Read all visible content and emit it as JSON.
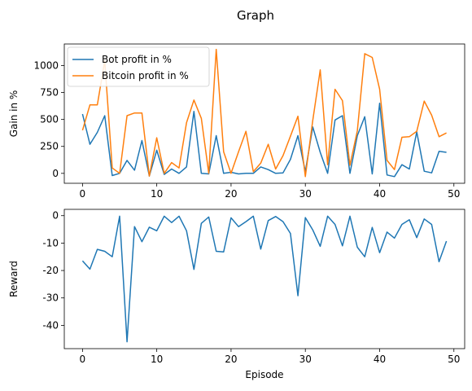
{
  "figure": {
    "title": "Graph"
  },
  "colors": {
    "blue": "#1f77b4",
    "orange": "#ff7f0e"
  },
  "chart_data": [
    {
      "type": "line",
      "ylabel": "Gain in %",
      "xlabel": "",
      "xlim": [
        -2.45,
        51.45
      ],
      "ylim": [
        -92,
        1200
      ],
      "xticks": [
        0,
        10,
        20,
        30,
        40,
        50
      ],
      "yticks": [
        0,
        250,
        500,
        750,
        1000
      ],
      "legend": "upper-left",
      "x": [
        0,
        1,
        2,
        3,
        4,
        5,
        6,
        7,
        8,
        9,
        10,
        11,
        12,
        13,
        14,
        15,
        16,
        17,
        18,
        19,
        20,
        21,
        22,
        23,
        24,
        25,
        26,
        27,
        28,
        29,
        30,
        31,
        32,
        33,
        34,
        35,
        36,
        37,
        38,
        39,
        40,
        41,
        42,
        43,
        44,
        45,
        46,
        47,
        48,
        49
      ],
      "series": [
        {
          "name": "Bot profit in %",
          "color": "#1f77b4",
          "values": [
            550,
            270,
            380,
            535,
            -20,
            0,
            120,
            30,
            305,
            -25,
            215,
            -10,
            40,
            0,
            60,
            575,
            0,
            -5,
            350,
            0,
            10,
            -5,
            0,
            0,
            60,
            35,
            0,
            5,
            130,
            350,
            15,
            430,
            195,
            0,
            495,
            535,
            0,
            350,
            525,
            -5,
            650,
            -15,
            -30,
            80,
            40,
            385,
            20,
            5,
            205,
            195
          ]
        },
        {
          "name": "Bitcoin profit in %",
          "color": "#ff7f0e",
          "values": [
            400,
            635,
            635,
            1045,
            50,
            0,
            535,
            560,
            560,
            -25,
            330,
            0,
            100,
            50,
            470,
            680,
            510,
            0,
            1150,
            200,
            0,
            200,
            390,
            15,
            95,
            270,
            40,
            165,
            345,
            530,
            -30,
            490,
            960,
            80,
            780,
            675,
            75,
            395,
            1110,
            1075,
            780,
            120,
            35,
            335,
            340,
            390,
            670,
            540,
            340,
            375
          ]
        }
      ]
    },
    {
      "type": "line",
      "ylabel": "Reward",
      "xlabel": "Episode",
      "xlim": [
        -2.45,
        51.45
      ],
      "ylim": [
        -48.5,
        2.3
      ],
      "xticks": [
        0,
        10,
        20,
        30,
        40,
        50
      ],
      "yticks": [
        0,
        -10,
        -20,
        -30,
        -40
      ],
      "x": [
        0,
        1,
        2,
        3,
        4,
        5,
        6,
        7,
        8,
        9,
        10,
        11,
        12,
        13,
        14,
        15,
        16,
        17,
        18,
        19,
        20,
        21,
        22,
        23,
        24,
        25,
        26,
        27,
        28,
        29,
        30,
        31,
        32,
        33,
        34,
        35,
        36,
        37,
        38,
        39,
        40,
        41,
        42,
        43,
        44,
        45,
        46,
        47,
        48,
        49
      ],
      "series": [
        {
          "color": "#1f77b4",
          "values": [
            -16.5,
            -19.5,
            -12.3,
            -13,
            -15,
            -0.2,
            -46,
            -4,
            -9.5,
            -4.2,
            -5.5,
            -0.2,
            -2.5,
            -0.2,
            -5.5,
            -19.6,
            -2.8,
            -0.5,
            -13,
            -13.2,
            -0.8,
            -4,
            -2.2,
            -0.2,
            -12.2,
            -1.8,
            -0.3,
            -2.2,
            -6.5,
            -29.2,
            -0.7,
            -5.2,
            -11.2,
            -0.2,
            -3.2,
            -11,
            -0.2,
            -11.5,
            -15,
            -4.3,
            -13.5,
            -6,
            -8.2,
            -3.2,
            -1.5,
            -8,
            -1.2,
            -3.2,
            -16.8,
            -9.3
          ]
        }
      ]
    }
  ]
}
